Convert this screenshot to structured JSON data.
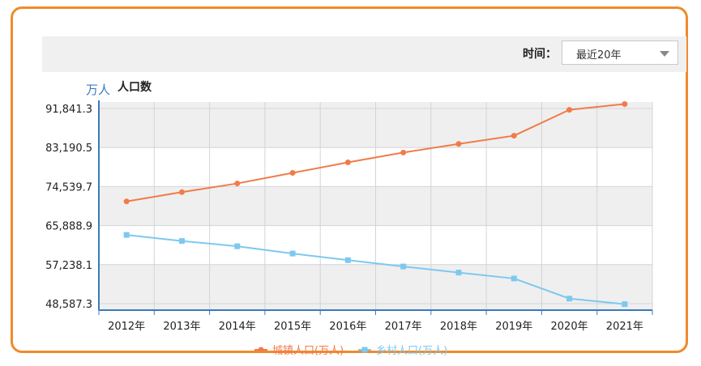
{
  "toolbar": {
    "time_label": "时间：",
    "time_select_value": "最近20年"
  },
  "chart_data": {
    "type": "line",
    "title": "人口数",
    "y_unit": "万人",
    "categories": [
      "2012年",
      "2013年",
      "2014年",
      "2015年",
      "2016年",
      "2017年",
      "2018年",
      "2019年",
      "2020年",
      "2021年"
    ],
    "ylim": [
      48587.3,
      91841.3
    ],
    "yticks": [
      "91,841.3",
      "83,190.5",
      "74,539.7",
      "65,888.9",
      "57,238.1",
      "48,587.3"
    ],
    "series": [
      {
        "name": "城镇人口(万人)",
        "color": "#f07c4a",
        "marker": "circle",
        "values": [
          71182,
          73111,
          74916,
          77116,
          79298,
          81347,
          83137,
          84843,
          90220,
          91425
        ]
      },
      {
        "name": "乡村人口(万人)",
        "color": "#7ec8f0",
        "marker": "square",
        "values": [
          64222,
          62961,
          61866,
          60346,
          58973,
          57661,
          56401,
          55162,
          50992,
          49835
        ]
      }
    ],
    "grid": true,
    "legend": "bottom-center"
  }
}
